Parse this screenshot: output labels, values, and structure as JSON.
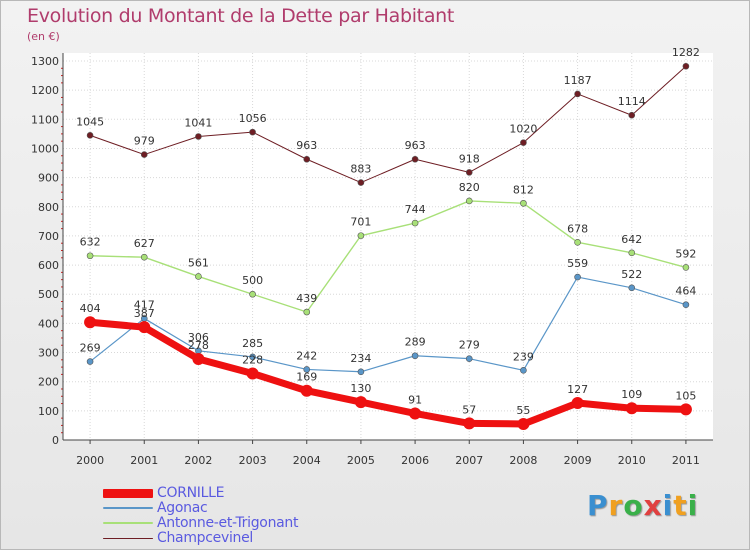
{
  "title": "Evolution du Montant de la Dette par Habitant",
  "subtitle": "(en €)",
  "logo": {
    "letters": [
      "P",
      "r",
      "o",
      "x",
      "i",
      "t",
      "i"
    ],
    "colors": [
      "#3a8fd0",
      "#f0a020",
      "#3ab04a",
      "#e04040",
      "#3a8fd0",
      "#f0a020",
      "#3ab04a"
    ]
  },
  "chart_data": {
    "type": "line",
    "x": [
      "2000",
      "2001",
      "2002",
      "2003",
      "2004",
      "2005",
      "2006",
      "2007",
      "2008",
      "2009",
      "2010",
      "2011"
    ],
    "ylim": [
      0,
      1300
    ],
    "yticks": [
      "0",
      "100",
      "200",
      "300",
      "400",
      "500",
      "600",
      "700",
      "800",
      "900",
      "1000",
      "1100",
      "1200",
      "1300"
    ],
    "grid": true,
    "legend_position": "bottom-left",
    "series": [
      {
        "name": "Champcevinel",
        "color": "#6e1e24",
        "width": 1,
        "values": [
          1045,
          979,
          1041,
          1056,
          963,
          883,
          963,
          918,
          1020,
          1187,
          1114,
          1282
        ],
        "labels": [
          "1045",
          "979",
          "1041",
          "1056",
          "963",
          "883",
          "963",
          "918",
          "1020",
          "1187",
          "1114",
          "1282"
        ]
      },
      {
        "name": "Antonne-et-Trigonant",
        "color": "#a8e078",
        "width": 1.4,
        "values": [
          632,
          627,
          561,
          500,
          439,
          701,
          744,
          820,
          812,
          678,
          642,
          592
        ],
        "labels": [
          "632",
          "627",
          "561",
          "500",
          "439",
          "701",
          "744",
          "820",
          "812",
          "678",
          "642",
          "592"
        ]
      },
      {
        "name": "Agonac",
        "color": "#5a96c8",
        "width": 1.2,
        "values": [
          269,
          417,
          306,
          285,
          242,
          234,
          289,
          279,
          239,
          559,
          522,
          464
        ],
        "labels": [
          "269",
          "417",
          "306",
          "285",
          "242",
          "234",
          "289",
          "279",
          "239",
          "559",
          "522",
          "464"
        ]
      },
      {
        "name": "CORNILLE",
        "color": "#ee1111",
        "width": 7,
        "values": [
          404,
          387,
          278,
          228,
          169,
          130,
          91,
          57,
          55,
          127,
          109,
          105
        ],
        "labels": [
          "404",
          "387",
          "278",
          "228",
          "169",
          "130",
          "91",
          "57",
          "55",
          "127",
          "109",
          "105"
        ]
      }
    ],
    "legend": [
      "CORNILLE",
      "Agonac",
      "Antonne-et-Trigonant",
      "Champcevinel"
    ]
  }
}
